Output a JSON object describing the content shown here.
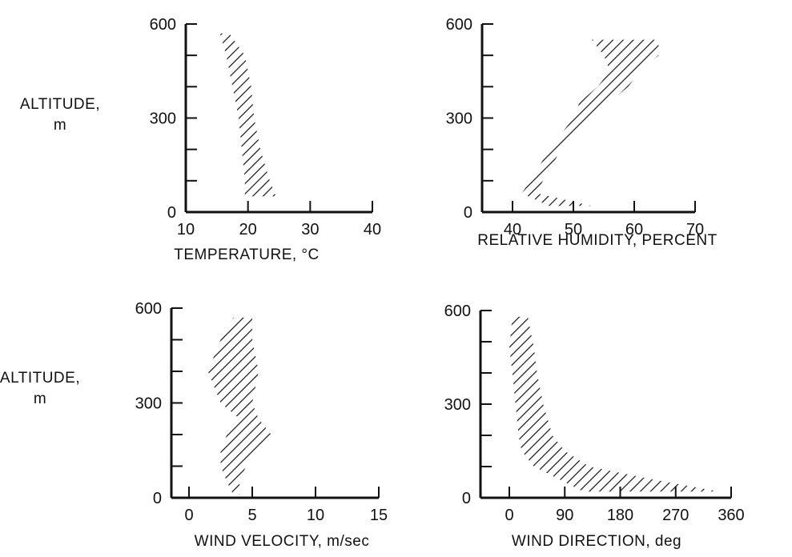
{
  "chart_data": [
    {
      "type": "area",
      "panel": "top-left",
      "xlabel": "TEMPERATURE, °C",
      "ylabel": "ALTITUDE, m",
      "xlim": [
        10,
        40
      ],
      "ylim": [
        0,
        600
      ],
      "xticks": [
        "10",
        "20",
        "30",
        "40"
      ],
      "yticks": [
        "0",
        "300",
        "600"
      ],
      "series": [
        {
          "y": [
            570,
            500,
            400,
            300,
            200,
            100,
            50
          ],
          "x_low": [
            15.5,
            16.5,
            17.5,
            18.5,
            19.0,
            19.5,
            19.5
          ],
          "x_high": [
            17.0,
            19.5,
            20.5,
            21.0,
            22.0,
            23.5,
            24.5
          ]
        }
      ]
    },
    {
      "type": "area",
      "panel": "top-right",
      "xlabel": "RELATIVE HUMIDITY, PERCENT",
      "ylabel": "",
      "xlim": [
        40,
        70
      ],
      "ylim": [
        0,
        600
      ],
      "xticks": [
        "40",
        "50",
        "60",
        "70"
      ],
      "yticks": [
        "0",
        "300",
        "600"
      ],
      "series": [
        {
          "y": [
            550,
            500,
            450,
            400,
            350,
            300,
            200,
            100,
            60,
            20
          ],
          "x_low": [
            53.0,
            55.0,
            56.0,
            54.0,
            51.0,
            50.0,
            46.0,
            43.0,
            41.5,
            46.0
          ],
          "x_high": [
            64.0,
            64.0,
            61.0,
            59.0,
            56.0,
            53.0,
            48.0,
            45.0,
            44.0,
            53.0
          ]
        }
      ]
    },
    {
      "type": "area",
      "panel": "bottom-left",
      "xlabel": "WIND VELOCITY, m/sec",
      "ylabel": "ALTITUDE, m",
      "xlim": [
        0,
        15
      ],
      "ylim": [
        0,
        600
      ],
      "xticks": [
        "0",
        "5",
        "10",
        "15"
      ],
      "yticks": [
        "0",
        "300",
        "600"
      ],
      "series": [
        {
          "y": [
            570,
            500,
            400,
            300,
            250,
            200,
            150,
            100,
            50,
            10
          ],
          "x_low": [
            3.5,
            2.5,
            1.5,
            2.5,
            4.0,
            3.0,
            2.5,
            2.5,
            3.0,
            3.5
          ],
          "x_high": [
            5.0,
            5.0,
            5.5,
            5.0,
            5.5,
            6.5,
            5.5,
            4.5,
            4.0,
            4.0
          ]
        }
      ]
    },
    {
      "type": "area",
      "panel": "bottom-right",
      "xlabel": "WIND DIRECTION, deg",
      "ylabel": "",
      "xlim": [
        0,
        360
      ],
      "ylim": [
        0,
        600
      ],
      "xticks": [
        "0",
        "90",
        "180",
        "270",
        "360"
      ],
      "yticks": [
        "0",
        "300",
        "600"
      ],
      "series": [
        {
          "y": [
            580,
            480,
            400,
            300,
            200,
            150,
            100,
            60,
            20
          ],
          "x_low": [
            5,
            0,
            5,
            10,
            15,
            20,
            40,
            80,
            120
          ],
          "x_high": [
            30,
            40,
            45,
            55,
            70,
            90,
            130,
            230,
            340
          ]
        }
      ]
    }
  ]
}
